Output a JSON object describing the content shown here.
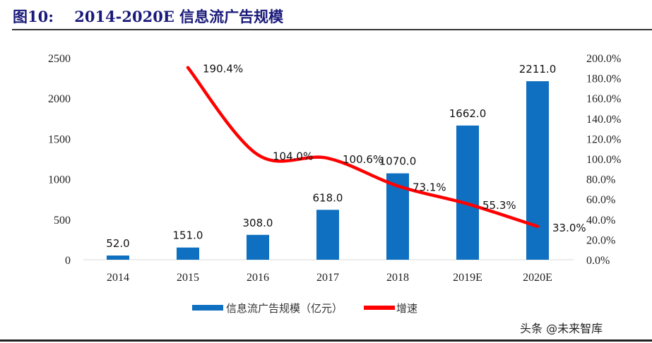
{
  "title": "图10:    2014-2020E 信息流广告规模",
  "watermark": "头条 @未来智库",
  "chart_data": {
    "type": "bar+line",
    "categories": [
      "2014",
      "2015",
      "2016",
      "2017",
      "2018",
      "2019E",
      "2020E"
    ],
    "series": [
      {
        "name": "信息流广告规模（亿元）",
        "type": "bar",
        "axis": "left",
        "color": "#0f6fc0",
        "values": [
          52.0,
          151.0,
          308.0,
          618.0,
          1070.0,
          1662.0,
          2211.0
        ],
        "labels": [
          "52.0",
          "151.0",
          "308.0",
          "618.0",
          "1070.0",
          "1662.0",
          "2211.0"
        ]
      },
      {
        "name": "增速",
        "type": "line",
        "axis": "right",
        "color": "#ff0000",
        "values": [
          null,
          190.4,
          104.0,
          100.6,
          73.1,
          55.3,
          33.0
        ],
        "labels": [
          "",
          "190.4%",
          "104.0%",
          "100.6%",
          "73.1%",
          "55.3%",
          "33.0%"
        ]
      }
    ],
    "y_left": {
      "range": [
        0,
        2500
      ],
      "ticks": [
        "0",
        "500",
        "1000",
        "1500",
        "2000",
        "2500"
      ]
    },
    "y_right": {
      "range": [
        0,
        200
      ],
      "ticks": [
        "0.0%",
        "20.0%",
        "40.0%",
        "60.0%",
        "80.0%",
        "100.0%",
        "120.0%",
        "140.0%",
        "160.0%",
        "180.0%",
        "200.0%"
      ]
    },
    "grid": false,
    "legend": "bottom"
  }
}
